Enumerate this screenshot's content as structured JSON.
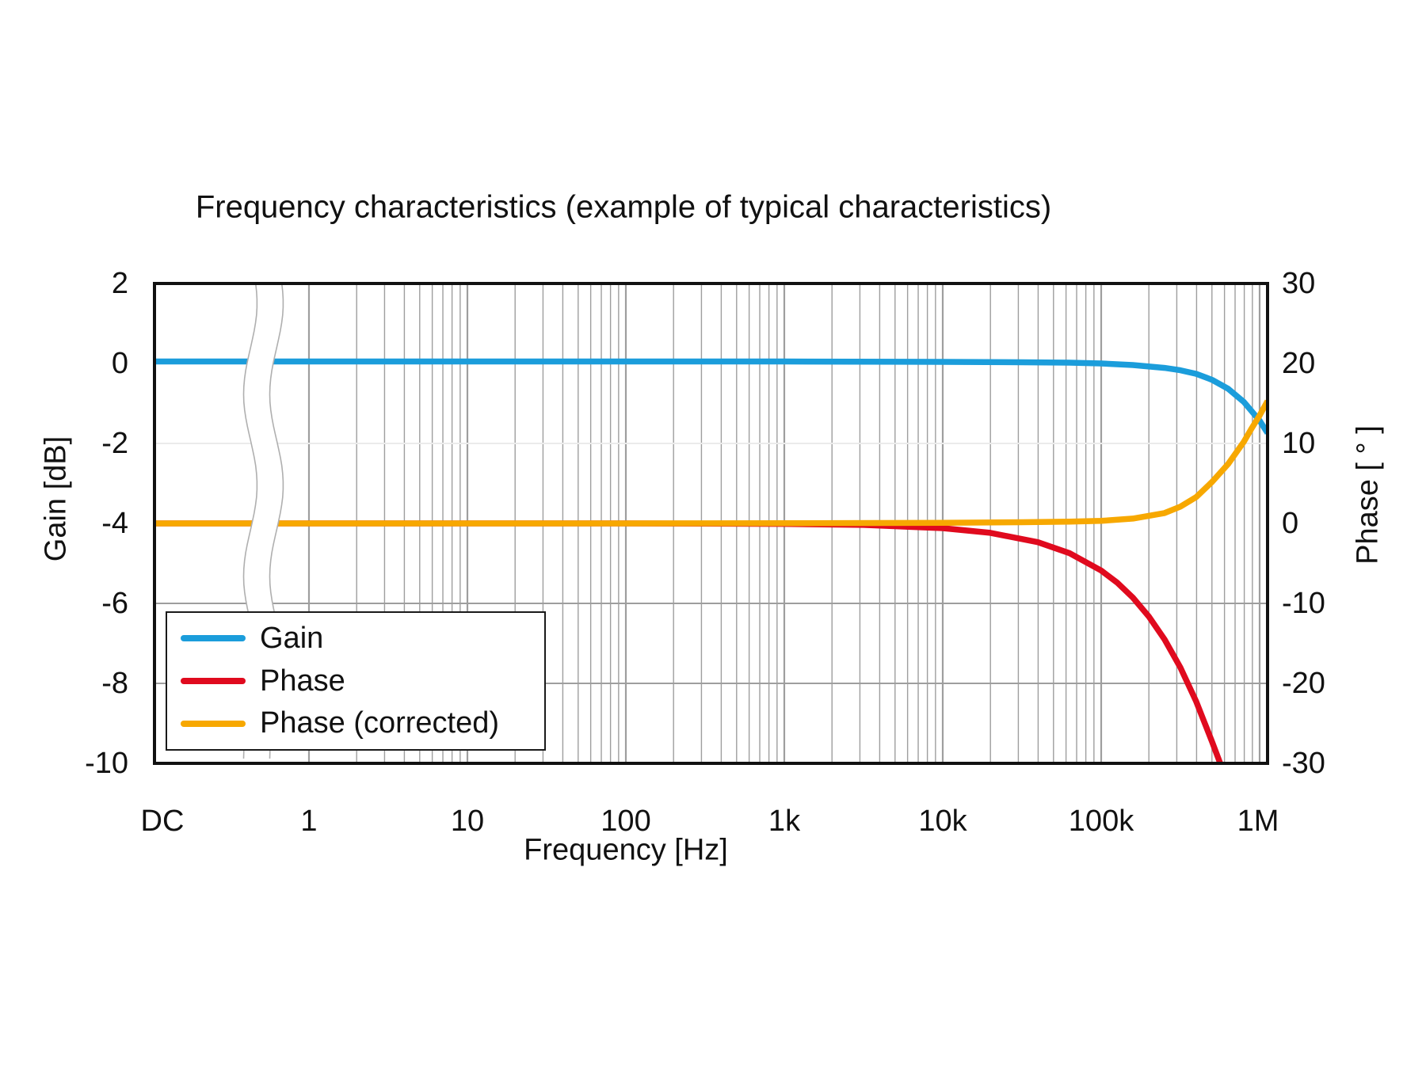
{
  "palette": {
    "gain": "#1B9DDB",
    "phase": "#E00A1E",
    "phase_corrected": "#F7A800",
    "grid": "#9E9E9E",
    "grid_light": "#EBEBEB",
    "frame": "#111111",
    "break_line": "#AFAFAF",
    "text": "#111111"
  },
  "legend": {
    "items": [
      {
        "label": "Gain",
        "series": "gain"
      },
      {
        "label": "Phase",
        "series": "phase"
      },
      {
        "label": "Phase (corrected)",
        "series": "phase_corrected"
      }
    ]
  },
  "chart_data": {
    "type": "line",
    "title": "Frequency characteristics (example of typical characteristics)",
    "xlabel": "Frequency [Hz]",
    "ylabel_left": "Gain [dB]",
    "ylabel_right": "Phase [ ° ]",
    "x_scale": "log",
    "x_ticks": [
      "DC",
      "1",
      "10",
      "100",
      "1k",
      "10k",
      "100k",
      "1M"
    ],
    "yticks_left": [
      "2",
      "0",
      "-2",
      "-4",
      "-6",
      "-8",
      "-10"
    ],
    "yticks_right": [
      "30",
      "20",
      "10",
      "0",
      "-10",
      "-20",
      "-30"
    ],
    "ylim_left": [
      -10,
      2
    ],
    "ylim_right": [
      -30,
      30
    ],
    "grid": "on",
    "legend_position": "lower left",
    "axis_break": {
      "between": [
        "DC",
        "1"
      ],
      "style": "double wavy line"
    },
    "hgrid_lines": [
      {
        "deg": 10,
        "tone": "light"
      },
      {
        "deg": -10,
        "tone": "mid"
      },
      {
        "deg": -20,
        "tone": "mid"
      }
    ],
    "series": [
      {
        "name": "Gain",
        "axis": "left",
        "unit": "dB",
        "color_key": "gain",
        "x_unit": "log10(Hz), -0.975 = DC edge",
        "points": [
          [
            -0.975,
            0.05
          ],
          [
            0,
            0.05
          ],
          [
            1,
            0.05
          ],
          [
            2,
            0.05
          ],
          [
            3,
            0.05
          ],
          [
            4,
            0.04
          ],
          [
            4.5,
            0.03
          ],
          [
            4.8,
            0.02
          ],
          [
            5.0,
            0.0
          ],
          [
            5.2,
            -0.04
          ],
          [
            5.4,
            -0.11
          ],
          [
            5.5,
            -0.17
          ],
          [
            5.6,
            -0.26
          ],
          [
            5.7,
            -0.41
          ],
          [
            5.8,
            -0.63
          ],
          [
            5.9,
            -0.96
          ],
          [
            6.0,
            -1.43
          ],
          [
            6.05,
            -1.74
          ]
        ]
      },
      {
        "name": "Phase",
        "axis": "right",
        "unit": "deg",
        "color_key": "phase",
        "x_unit": "log10(Hz), -0.975 = DC edge",
        "points": [
          [
            -0.975,
            0
          ],
          [
            0,
            0
          ],
          [
            1,
            0
          ],
          [
            2,
            0
          ],
          [
            3,
            -0.06
          ],
          [
            3.5,
            -0.19
          ],
          [
            4,
            -0.59
          ],
          [
            4.3,
            -1.18
          ],
          [
            4.6,
            -2.35
          ],
          [
            4.8,
            -3.72
          ],
          [
            5.0,
            -5.89
          ],
          [
            5.1,
            -7.39
          ],
          [
            5.2,
            -9.28
          ],
          [
            5.3,
            -11.62
          ],
          [
            5.4,
            -14.5
          ],
          [
            5.5,
            -18.03
          ],
          [
            5.6,
            -22.29
          ],
          [
            5.7,
            -27.32
          ],
          [
            5.78,
            -31.5
          ]
        ]
      },
      {
        "name": "Phase (corrected)",
        "axis": "right",
        "unit": "deg",
        "color_key": "phase_corrected",
        "x_unit": "log10(Hz), -0.975 = DC edge",
        "points": [
          [
            -0.975,
            0
          ],
          [
            0,
            0
          ],
          [
            1,
            0
          ],
          [
            2,
            0
          ],
          [
            3,
            0.02
          ],
          [
            4,
            0.08
          ],
          [
            4.5,
            0.15
          ],
          [
            4.8,
            0.22
          ],
          [
            5.0,
            0.32
          ],
          [
            5.2,
            0.6
          ],
          [
            5.4,
            1.3
          ],
          [
            5.5,
            2.1
          ],
          [
            5.6,
            3.3
          ],
          [
            5.7,
            5.2
          ],
          [
            5.8,
            7.4
          ],
          [
            5.9,
            10.2
          ],
          [
            5.95,
            11.9
          ],
          [
            6.0,
            13.5
          ],
          [
            6.05,
            15.3
          ]
        ]
      }
    ]
  }
}
